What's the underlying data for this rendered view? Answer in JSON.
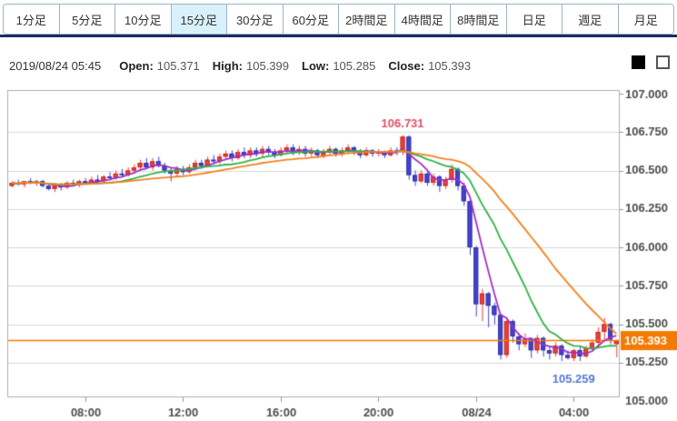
{
  "tabs": {
    "items": [
      {
        "label": "1分足",
        "selected": false
      },
      {
        "label": "5分足",
        "selected": false
      },
      {
        "label": "10分足",
        "selected": false
      },
      {
        "label": "15分足",
        "selected": true
      },
      {
        "label": "30分足",
        "selected": false
      },
      {
        "label": "60分足",
        "selected": false
      },
      {
        "label": "2時間足",
        "selected": false
      },
      {
        "label": "4時間足",
        "selected": false
      },
      {
        "label": "8時間足",
        "selected": false
      },
      {
        "label": "日足",
        "selected": false
      },
      {
        "label": "週足",
        "selected": false
      },
      {
        "label": "月足",
        "selected": false
      }
    ],
    "selected_bg": "#d9f1fb"
  },
  "info": {
    "datetime": "2019/08/24 05:45",
    "fields": [
      {
        "label": "Open:",
        "value": "105.371"
      },
      {
        "label": "High:",
        "value": "105.399"
      },
      {
        "label": "Low:",
        "value": "105.285"
      },
      {
        "label": "Close:",
        "value": "105.393"
      }
    ]
  },
  "legend": {
    "swatches": [
      {
        "name": "filled-square-swatch",
        "fill": "#000000"
      },
      {
        "name": "outline-square-swatch",
        "fill": "#ffffff"
      }
    ]
  },
  "chart_data": {
    "type": "candlestick",
    "title": "",
    "x_tick_labels": [
      "08:00",
      "12:00",
      "16:00",
      "20:00",
      "08/24",
      "04:00"
    ],
    "x_tick_indices": [
      12,
      28,
      44,
      60,
      76,
      92
    ],
    "y_tick_labels": [
      "107.000",
      "106.750",
      "106.500",
      "106.250",
      "106.000",
      "105.750",
      "105.500",
      "105.250",
      "105.000"
    ],
    "ylim": [
      105.0,
      107.0
    ],
    "grid": true,
    "high_label": {
      "text": "106.731",
      "value": 106.731,
      "index": 64,
      "color": "#e0506a"
    },
    "low_label": {
      "text": "105.259",
      "value": 105.259,
      "index": 92,
      "color": "#5578d0"
    },
    "current_price": {
      "text": "105.393",
      "value": 105.393,
      "line_color": "#f47a00",
      "box_color": "#f47a00",
      "text_color": "#ffffff"
    },
    "moving_averages": [
      {
        "name": "short-ma",
        "period": 5,
        "color": "#a12fc9"
      },
      {
        "name": "mid-ma",
        "period": 13,
        "color": "#2eb447"
      },
      {
        "name": "long-ma",
        "period": 25,
        "color": "#f5821f"
      }
    ],
    "colors": {
      "up": "#e8433a",
      "up_border": "#c32b24",
      "down": "#4343cd",
      "down_border": "#3232a8",
      "grid": "#d9d9d9",
      "border": "#b0b0b0",
      "axis_text": "#4d4d4d"
    },
    "candles": [
      [
        106.4,
        106.43,
        106.39,
        106.42
      ],
      [
        106.42,
        106.44,
        106.4,
        106.41
      ],
      [
        106.41,
        106.43,
        106.39,
        106.43
      ],
      [
        106.43,
        106.45,
        106.41,
        106.42
      ],
      [
        106.42,
        106.44,
        106.4,
        106.43
      ],
      [
        106.43,
        106.44,
        106.39,
        106.4
      ],
      [
        106.4,
        106.42,
        106.37,
        106.38
      ],
      [
        106.38,
        106.41,
        106.36,
        106.4
      ],
      [
        106.4,
        106.42,
        106.37,
        106.39
      ],
      [
        106.39,
        106.43,
        106.38,
        106.42
      ],
      [
        106.42,
        106.44,
        106.4,
        106.41
      ],
      [
        106.41,
        106.44,
        106.39,
        106.43
      ],
      [
        106.43,
        106.45,
        106.41,
        106.42
      ],
      [
        106.42,
        106.46,
        106.41,
        106.44
      ],
      [
        106.44,
        106.47,
        106.42,
        106.43
      ],
      [
        106.43,
        106.47,
        106.42,
        106.46
      ],
      [
        106.46,
        106.49,
        106.44,
        106.45
      ],
      [
        106.45,
        106.5,
        106.44,
        106.48
      ],
      [
        106.48,
        106.51,
        106.46,
        106.47
      ],
      [
        106.47,
        106.52,
        106.46,
        106.5
      ],
      [
        106.5,
        106.54,
        106.48,
        106.52
      ],
      [
        106.52,
        106.57,
        106.5,
        106.55
      ],
      [
        106.55,
        106.58,
        106.51,
        106.52
      ],
      [
        106.52,
        106.58,
        106.5,
        106.56
      ],
      [
        106.56,
        106.59,
        106.52,
        106.53
      ],
      [
        106.53,
        106.55,
        106.48,
        106.5
      ],
      [
        106.5,
        106.52,
        106.43,
        106.48
      ],
      [
        106.48,
        106.53,
        106.46,
        106.51
      ],
      [
        106.51,
        106.53,
        106.47,
        106.49
      ],
      [
        106.49,
        106.54,
        106.48,
        106.52
      ],
      [
        106.52,
        106.57,
        106.5,
        106.55
      ],
      [
        106.55,
        106.57,
        106.51,
        106.53
      ],
      [
        106.53,
        106.59,
        106.52,
        106.57
      ],
      [
        106.57,
        106.6,
        106.54,
        106.56
      ],
      [
        106.56,
        106.61,
        106.54,
        106.59
      ],
      [
        106.59,
        106.63,
        106.57,
        106.61
      ],
      [
        106.61,
        106.63,
        106.56,
        106.58
      ],
      [
        106.58,
        106.64,
        106.57,
        106.62
      ],
      [
        106.62,
        106.65,
        106.58,
        106.6
      ],
      [
        106.6,
        106.65,
        106.58,
        106.63
      ],
      [
        106.63,
        106.65,
        106.59,
        106.61
      ],
      [
        106.61,
        106.66,
        106.59,
        106.64
      ],
      [
        106.64,
        106.66,
        106.6,
        106.62
      ],
      [
        106.62,
        106.64,
        106.58,
        106.6
      ],
      [
        106.6,
        106.65,
        106.59,
        106.63
      ],
      [
        106.63,
        106.67,
        106.61,
        106.65
      ],
      [
        106.65,
        106.67,
        106.6,
        106.62
      ],
      [
        106.62,
        106.66,
        106.6,
        106.64
      ],
      [
        106.64,
        106.66,
        106.59,
        106.61
      ],
      [
        106.61,
        106.65,
        106.59,
        106.63
      ],
      [
        106.63,
        106.64,
        106.58,
        106.6
      ],
      [
        106.6,
        106.64,
        106.58,
        106.62
      ],
      [
        106.62,
        106.66,
        106.6,
        106.64
      ],
      [
        106.64,
        106.65,
        106.59,
        106.61
      ],
      [
        106.61,
        106.65,
        106.59,
        106.63
      ],
      [
        106.63,
        106.67,
        106.61,
        106.65
      ],
      [
        106.65,
        106.66,
        106.6,
        106.62
      ],
      [
        106.62,
        106.64,
        106.58,
        106.6
      ],
      [
        106.6,
        106.65,
        106.59,
        106.63
      ],
      [
        106.63,
        106.64,
        106.59,
        106.61
      ],
      [
        106.61,
        106.64,
        106.59,
        106.62
      ],
      [
        106.62,
        106.63,
        106.58,
        106.6
      ],
      [
        106.6,
        106.65,
        106.59,
        106.63
      ],
      [
        106.63,
        106.65,
        106.6,
        106.62
      ],
      [
        106.62,
        106.731,
        106.6,
        106.72
      ],
      [
        106.72,
        106.73,
        106.44,
        106.47
      ],
      [
        106.47,
        106.5,
        106.4,
        106.43
      ],
      [
        106.43,
        106.5,
        106.42,
        106.48
      ],
      [
        106.48,
        106.49,
        106.4,
        106.42
      ],
      [
        106.42,
        106.48,
        106.4,
        106.46
      ],
      [
        106.46,
        106.47,
        106.36,
        106.4
      ],
      [
        106.4,
        106.46,
        106.38,
        106.44
      ],
      [
        106.44,
        106.54,
        106.42,
        106.51
      ],
      [
        106.51,
        106.52,
        106.37,
        106.4
      ],
      [
        106.4,
        106.42,
        106.27,
        106.3
      ],
      [
        106.3,
        106.32,
        105.95,
        106.0
      ],
      [
        106.0,
        106.01,
        105.55,
        105.63
      ],
      [
        105.63,
        105.73,
        105.52,
        105.7
      ],
      [
        105.7,
        105.71,
        105.48,
        105.62
      ],
      [
        105.62,
        105.64,
        105.5,
        105.56
      ],
      [
        105.56,
        105.57,
        105.27,
        105.3
      ],
      [
        105.3,
        105.54,
        105.28,
        105.52
      ],
      [
        105.52,
        105.53,
        105.38,
        105.42
      ],
      [
        105.42,
        105.44,
        105.33,
        105.37
      ],
      [
        105.37,
        105.44,
        105.35,
        105.4
      ],
      [
        105.4,
        105.41,
        105.28,
        105.33
      ],
      [
        105.33,
        105.43,
        105.31,
        105.41
      ],
      [
        105.41,
        105.42,
        105.29,
        105.33
      ],
      [
        105.33,
        105.36,
        105.27,
        105.31
      ],
      [
        105.31,
        105.38,
        105.29,
        105.36
      ],
      [
        105.36,
        105.37,
        105.26,
        105.3
      ],
      [
        105.3,
        105.33,
        105.27,
        105.28
      ],
      [
        105.28,
        105.34,
        105.259,
        105.33
      ],
      [
        105.33,
        105.35,
        105.26,
        105.29
      ],
      [
        105.29,
        105.36,
        105.28,
        105.34
      ],
      [
        105.34,
        105.4,
        105.32,
        105.38
      ],
      [
        105.38,
        105.48,
        105.35,
        105.45
      ],
      [
        105.45,
        105.54,
        105.4,
        105.5
      ],
      [
        105.5,
        105.51,
        105.37,
        105.4
      ],
      [
        105.371,
        105.399,
        105.285,
        105.393
      ]
    ]
  }
}
